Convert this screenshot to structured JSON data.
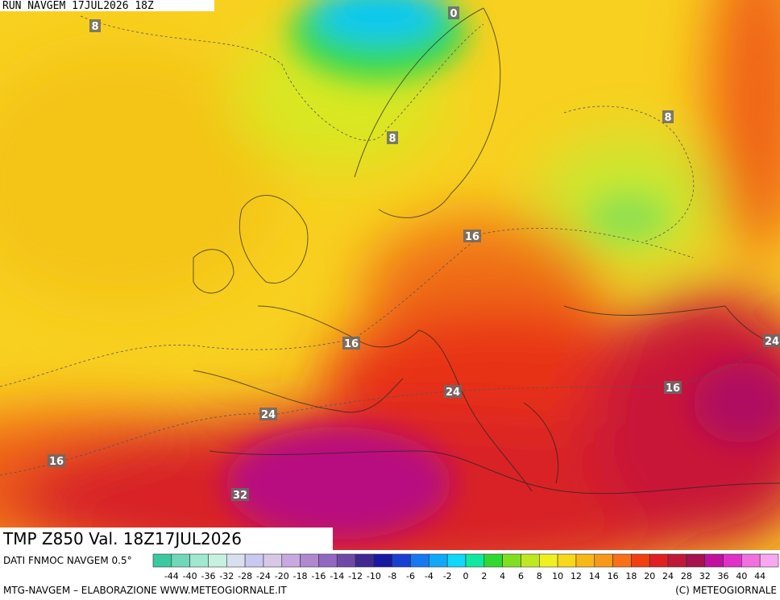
{
  "header": {
    "run": "RUN NAVGEM 17JUL2026 18Z"
  },
  "contour_labels": [
    "0",
    "8",
    "8",
    "8",
    "16",
    "16",
    "16",
    "16",
    "24",
    "24",
    "24",
    "32"
  ],
  "footer": {
    "field": "TMP Z850 Val. 18Z17JUL2026",
    "source": "DATI FNMOC NAVGEM 0.5°",
    "credit_left": "MTG-NAVGEM – ELABORAZIONE WWW.METEOGIORNALE.IT",
    "credit_right": "(C) METEOGIORNALE"
  },
  "legend": {
    "labels": [
      "-44",
      "-40",
      "-36",
      "-32",
      "-28",
      "-24",
      "-20",
      "-18",
      "-16",
      "-14",
      "-12",
      "-10",
      "-8",
      "-6",
      "-4",
      "-2",
      "0",
      "2",
      "4",
      "6",
      "8",
      "10",
      "12",
      "14",
      "16",
      "18",
      "20",
      "24",
      "28",
      "32",
      "36",
      "40",
      "44"
    ],
    "colors": [
      "#3cc8a0",
      "#70d8b8",
      "#a0e8d0",
      "#c8f0e0",
      "#d8e0f0",
      "#c8c8f0",
      "#d8c8e8",
      "#c8a8e0",
      "#b088d0",
      "#9068c0",
      "#7048a8",
      "#402890",
      "#1818a0",
      "#1840d0",
      "#1878f0",
      "#10a8f8",
      "#10d8f8",
      "#10e8a0",
      "#30d830",
      "#80e020",
      "#c0e820",
      "#f0f020",
      "#f8d818",
      "#f8b818",
      "#f89818",
      "#f87018",
      "#f04010",
      "#e02020",
      "#c01838",
      "#a81050",
      "#c010a0",
      "#e030c8",
      "#f070e0",
      "#f8a8f0"
    ]
  }
}
